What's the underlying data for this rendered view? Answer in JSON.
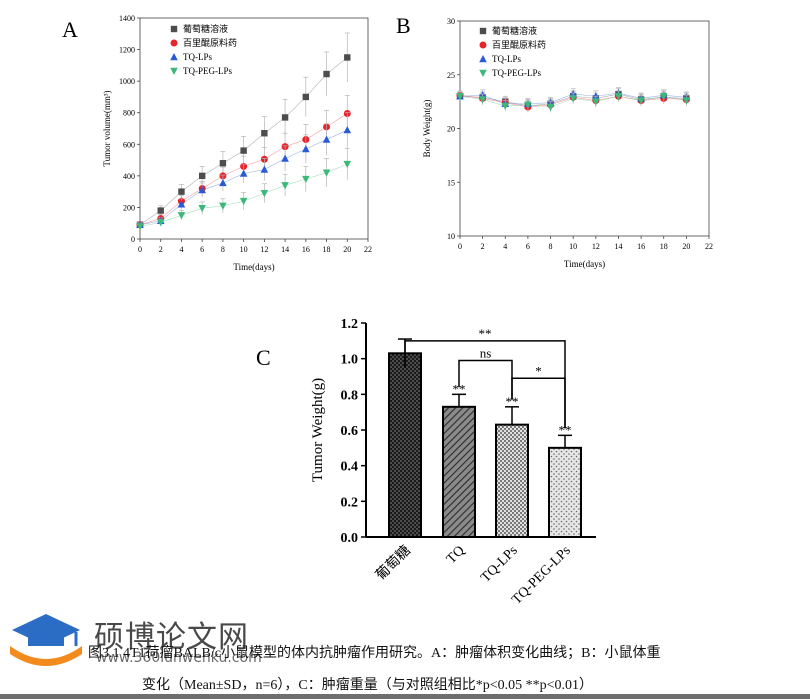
{
  "panels": {
    "a_label": "A",
    "b_label": "B",
    "c_label": "C"
  },
  "legend_items": [
    "葡萄糖溶液",
    "百里醌原料药",
    "TQ-LPs",
    "TQ-PEG-LPs"
  ],
  "colors": {
    "glucose": "#4d4d4d",
    "tq": "#e8232a",
    "tq_lps": "#2a5bd7",
    "tq_peg_lps": "#3cb878"
  },
  "caption": {
    "line1": "图3.1 4T1荷瘤BALB/c小鼠模型的体内抗肿瘤作用研究。A：肿瘤体积变化曲线；B：小鼠体重",
    "line2": "变化（Mean±SD，n=6），C：肿瘤重量（与对照组相比*p<0.05 **p<0.01）"
  },
  "watermark": {
    "brand": "硕博论文网",
    "site": "www.360lunwenku.com"
  },
  "chart_data": [
    {
      "id": "A",
      "type": "line",
      "xlabel": "Time(days)",
      "ylabel": "Tumor volume(mm³)",
      "xlim": [
        0,
        22
      ],
      "ylim": [
        0,
        1400
      ],
      "xticks": [
        0,
        2,
        4,
        6,
        8,
        10,
        12,
        14,
        16,
        18,
        20,
        22
      ],
      "yticks": [
        0,
        200,
        400,
        600,
        800,
        1000,
        1200,
        1400
      ],
      "x": [
        0,
        2,
        4,
        6,
        8,
        10,
        12,
        14,
        16,
        18,
        20
      ],
      "legend_position": "top-left",
      "series": [
        {
          "name": "葡萄糖溶液",
          "marker": "square",
          "color_key": "glucose",
          "values": [
            90,
            180,
            300,
            400,
            480,
            560,
            670,
            770,
            900,
            1045,
            1150
          ],
          "err": [
            20,
            30,
            45,
            60,
            75,
            90,
            105,
            115,
            125,
            140,
            155
          ]
        },
        {
          "name": "百里醌原料药",
          "marker": "circle",
          "color_key": "tq",
          "values": [
            90,
            130,
            240,
            320,
            400,
            460,
            505,
            585,
            630,
            710,
            795
          ],
          "err": [
            15,
            25,
            35,
            45,
            55,
            65,
            75,
            85,
            95,
            105,
            115
          ]
        },
        {
          "name": "TQ-LPs",
          "marker": "triangle-up",
          "color_key": "tq_lps",
          "values": [
            90,
            115,
            220,
            310,
            355,
            415,
            440,
            510,
            570,
            630,
            690
          ],
          "err": [
            15,
            20,
            35,
            45,
            50,
            60,
            70,
            80,
            90,
            100,
            110
          ]
        },
        {
          "name": "TQ-PEG-LPs",
          "marker": "triangle-down",
          "color_key": "tq_peg_lps",
          "values": [
            80,
            105,
            150,
            195,
            210,
            240,
            290,
            340,
            380,
            420,
            475
          ],
          "err": [
            15,
            20,
            30,
            40,
            45,
            55,
            60,
            70,
            80,
            90,
            100
          ]
        }
      ]
    },
    {
      "id": "B",
      "type": "line",
      "xlabel": "Time(days)",
      "ylabel": "Body Weight(g)",
      "xlim": [
        0,
        22
      ],
      "ylim": [
        10,
        30
      ],
      "xticks": [
        0,
        2,
        4,
        6,
        8,
        10,
        12,
        14,
        16,
        18,
        20,
        22
      ],
      "yticks": [
        10,
        15,
        20,
        25,
        30
      ],
      "x": [
        0,
        2,
        4,
        6,
        8,
        10,
        12,
        14,
        16,
        18,
        20
      ],
      "legend_position": "top-left",
      "series": [
        {
          "name": "葡萄糖溶液",
          "marker": "square",
          "color_key": "glucose",
          "values": [
            23.0,
            22.9,
            22.5,
            22.1,
            22.3,
            23.0,
            22.8,
            23.2,
            22.7,
            22.9,
            22.8
          ],
          "err": [
            0.4,
            0.5,
            0.5,
            0.5,
            0.5,
            0.5,
            0.5,
            0.5,
            0.5,
            0.5,
            0.5
          ]
        },
        {
          "name": "百里醌原料药",
          "marker": "circle",
          "color_key": "tq",
          "values": [
            23.1,
            22.8,
            22.4,
            22.0,
            22.2,
            22.9,
            22.6,
            23.0,
            22.6,
            22.8,
            22.7
          ],
          "err": [
            0.4,
            0.5,
            0.5,
            0.5,
            0.5,
            0.5,
            0.5,
            0.5,
            0.5,
            0.5,
            0.5
          ]
        },
        {
          "name": "TQ-LPs",
          "marker": "triangle-up",
          "color_key": "tq_lps",
          "values": [
            23.0,
            23.1,
            22.3,
            22.3,
            22.4,
            23.2,
            23.0,
            23.3,
            22.8,
            23.1,
            22.9
          ],
          "err": [
            0.4,
            0.5,
            0.5,
            0.5,
            0.5,
            0.5,
            0.5,
            0.5,
            0.5,
            0.5,
            0.5
          ]
        },
        {
          "name": "TQ-PEG-LPs",
          "marker": "triangle-down",
          "color_key": "tq_peg_lps",
          "values": [
            23.0,
            22.7,
            22.1,
            22.2,
            22.0,
            22.8,
            22.5,
            23.0,
            22.6,
            23.0,
            22.6
          ],
          "err": [
            0.4,
            0.5,
            0.5,
            0.5,
            0.5,
            0.5,
            0.5,
            0.5,
            0.5,
            0.5,
            0.5
          ]
        }
      ]
    },
    {
      "id": "C",
      "type": "bar",
      "xlabel": "",
      "ylabel": "Tumor Weight(g)",
      "ylim": [
        0.0,
        1.2
      ],
      "yticks": [
        "0.0",
        "0.2",
        "0.4",
        "0.6",
        "0.8",
        "1.0",
        "1.2"
      ],
      "categories": [
        "葡萄糖",
        "TQ",
        "TQ-LPs",
        "TQ-PEG-LPs"
      ],
      "values": [
        1.03,
        0.73,
        0.63,
        0.5
      ],
      "err": [
        0.08,
        0.07,
        0.1,
        0.07
      ],
      "patterns": [
        "dense-dots",
        "diagonal-hatch",
        "checker",
        "sparse-dots"
      ],
      "significance_marks": [
        "**",
        "**",
        "**"
      ],
      "brackets": [
        {
          "from": 0,
          "to": 3,
          "label": "**"
        },
        {
          "from": 1,
          "to": 2,
          "label": "ns"
        },
        {
          "from": 2,
          "to": 3,
          "label": "*"
        }
      ]
    }
  ]
}
